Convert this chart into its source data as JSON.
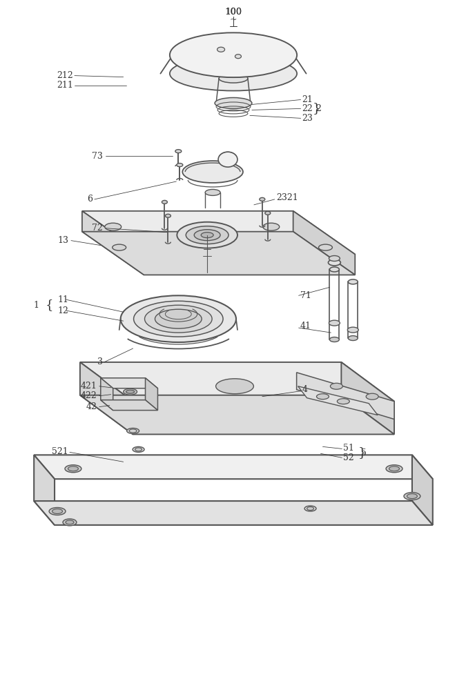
{
  "bg_color": "#ffffff",
  "line_color": "#555555",
  "line_color_dark": "#333333",
  "figsize": [
    6.75,
    10.0
  ],
  "dpi": 100
}
